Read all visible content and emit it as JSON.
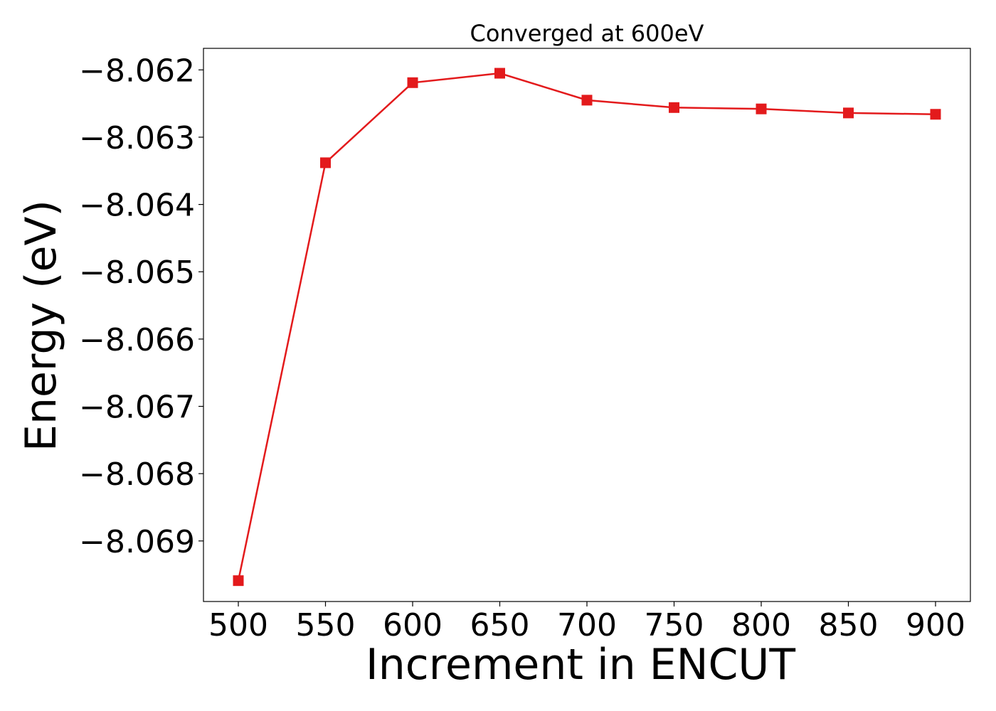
{
  "chart_data": {
    "type": "line",
    "title": "Converged at 600eV",
    "xlabel": "Increment in ENCUT",
    "ylabel": "Energy (eV)",
    "x": [
      500,
      550,
      600,
      650,
      700,
      750,
      800,
      850,
      900
    ],
    "series": [
      {
        "values": [
          -8.06959,
          -8.06338,
          -8.06219,
          -8.06205,
          -8.06245,
          -8.06256,
          -8.06258,
          -8.06264,
          -8.06266
        ],
        "color": "#e31a1c",
        "marker": "square"
      }
    ],
    "xticks": [
      500,
      550,
      600,
      650,
      700,
      750,
      800,
      850,
      900
    ],
    "yticks": [
      -8.069,
      -8.068,
      -8.067,
      -8.066,
      -8.065,
      -8.064,
      -8.063,
      -8.062
    ],
    "ytick_labels": [
      "−8.069",
      "−8.068",
      "−8.067",
      "−8.066",
      "−8.065",
      "−8.064",
      "−8.063",
      "−8.062"
    ],
    "xlim": [
      480,
      920
    ],
    "ylim": [
      -8.0699,
      -8.06168
    ],
    "grid": false,
    "legend": "none"
  }
}
